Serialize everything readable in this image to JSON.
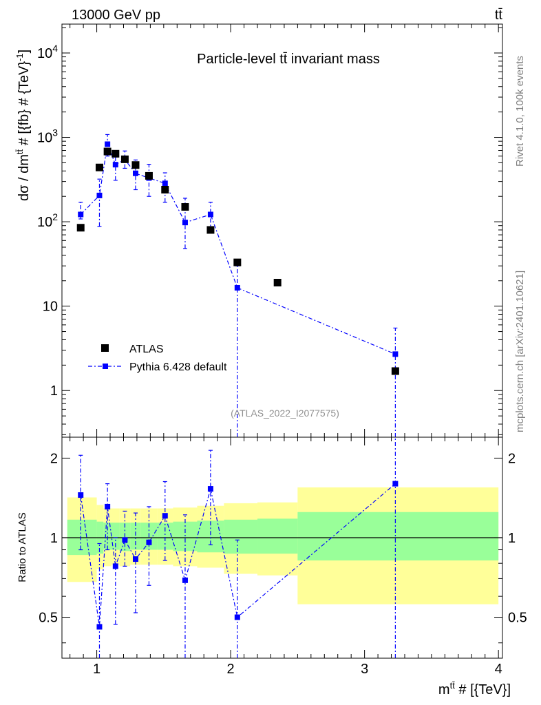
{
  "header": {
    "left": "13000 GeV pp",
    "right": "tt̄"
  },
  "side_labels": {
    "rivet": "Rivet 4.1.0,  100k events",
    "mcplots": "mcplots.cern.ch [arXiv:2401.10621]"
  },
  "chart_data": [
    {
      "type": "scatter",
      "title": "Particle-level tt̄ invariant mass",
      "ylabel": "dσ / dm",
      "ylabel_sup": "tt̄",
      "ylabel_rest": " # [{fb} # {TeV}",
      "ylabel_sup2": "-1",
      "ylabel_end": "]",
      "yscale": "log",
      "ylim": [
        0.28,
        22000
      ],
      "xlim": [
        0.74,
        4.03
      ],
      "yticks": [
        {
          "value": 1,
          "label": "1",
          "sup": ""
        },
        {
          "value": 10,
          "label": "10",
          "sup": ""
        },
        {
          "value": 100,
          "label": "10",
          "sup": "2"
        },
        {
          "value": 1000,
          "label": "10",
          "sup": "3"
        },
        {
          "value": 10000,
          "label": "10",
          "sup": "4"
        }
      ],
      "legend_position": "bottom-left",
      "watermark": "(ATLAS_2022_I2077575)",
      "series": [
        {
          "name": "ATLAS",
          "color": "#000000",
          "x": [
            0.88,
            1.02,
            1.08,
            1.14,
            1.21,
            1.29,
            1.39,
            1.51,
            1.66,
            1.85,
            2.05,
            2.35,
            3.23
          ],
          "y": [
            85,
            440,
            680,
            640,
            550,
            470,
            350,
            240,
            150,
            80,
            33,
            19,
            1.7
          ]
        },
        {
          "name": "Pythia 6.428 default",
          "color": "#0000ff",
          "x": [
            0.88,
            1.02,
            1.08,
            1.14,
            1.21,
            1.29,
            1.39,
            1.51,
            1.66,
            1.85,
            2.05,
            3.23
          ],
          "y": [
            122,
            205,
            830,
            475,
            545,
            375,
            330,
            285,
            98,
            122,
            16.5,
            2.7
          ],
          "yerr_low": [
            108,
            88,
            600,
            310,
            430,
            240,
            200,
            170,
            48,
            75,
            0.01,
            0.01
          ],
          "yerr_high": [
            170,
            320,
            1080,
            650,
            690,
            540,
            480,
            380,
            190,
            170,
            30,
            5.5
          ]
        }
      ]
    },
    {
      "type": "scatter",
      "ylabel": "Ratio to ATLAS",
      "xlabel": "m",
      "xlabel_sup": "tt̄",
      "xlabel_rest": " # [{TeV}]",
      "yscale": "log",
      "ylim": [
        0.35,
        2.4
      ],
      "xlim": [
        0.74,
        4.03
      ],
      "xticks": [
        1,
        2,
        3,
        4
      ],
      "yticks": [
        {
          "value": 0.5,
          "label": "0.5"
        },
        {
          "value": 1,
          "label": "1"
        },
        {
          "value": 2,
          "label": "2"
        }
      ],
      "bands": {
        "edges": [
          0.78,
          1.0,
          1.05,
          1.11,
          1.17,
          1.25,
          1.33,
          1.45,
          1.57,
          1.75,
          1.95,
          2.2,
          2.5,
          4.0
        ],
        "inner_low": [
          0.86,
          0.87,
          0.9,
          0.9,
          0.89,
          0.9,
          0.9,
          0.9,
          0.89,
          0.88,
          0.87,
          0.87,
          0.82
        ],
        "inner_high": [
          1.17,
          1.15,
          1.14,
          1.14,
          1.14,
          1.14,
          1.14,
          1.14,
          1.15,
          1.16,
          1.17,
          1.18,
          1.25
        ],
        "outer_low": [
          0.68,
          0.76,
          0.78,
          0.79,
          0.78,
          0.79,
          0.79,
          0.79,
          0.78,
          0.77,
          0.73,
          0.72,
          0.56
        ],
        "outer_high": [
          1.42,
          1.33,
          1.29,
          1.29,
          1.29,
          1.29,
          1.29,
          1.29,
          1.3,
          1.32,
          1.35,
          1.36,
          1.55
        ],
        "inner_color": "#99ff99",
        "outer_color": "#ffff99"
      },
      "series": [
        {
          "name": "Pythia 6.428 default",
          "color": "#0000ff",
          "x": [
            0.88,
            1.02,
            1.08,
            1.14,
            1.21,
            1.29,
            1.39,
            1.51,
            1.66,
            1.85,
            2.05,
            3.23
          ],
          "y": [
            1.45,
            0.46,
            1.31,
            0.78,
            0.98,
            0.83,
            0.96,
            1.21,
            0.69,
            1.53,
            0.5,
            1.6
          ],
          "yerr_low": [
            0.9,
            0.2,
            0.9,
            0.47,
            0.78,
            0.52,
            0.66,
            0.82,
            0.2,
            0.94,
            0.2,
            0.2
          ],
          "yerr_high": [
            2.05,
            0.95,
            1.6,
            1.0,
            1.26,
            1.24,
            1.31,
            1.63,
            1.22,
            2.14,
            0.98,
            3.0
          ]
        }
      ]
    }
  ]
}
